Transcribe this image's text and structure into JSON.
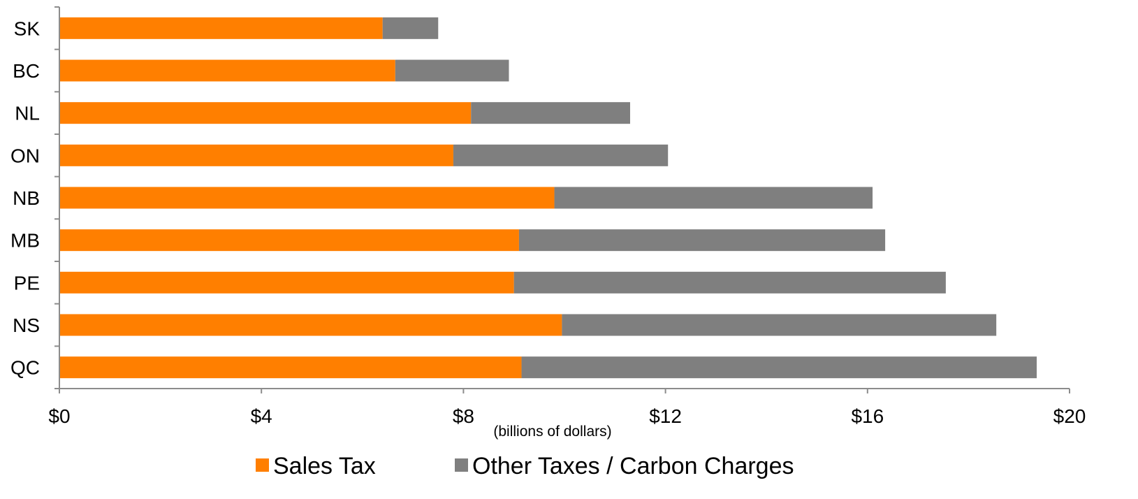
{
  "chart_data": {
    "type": "bar",
    "orientation": "horizontal",
    "stacked": true,
    "categories": [
      "SK",
      "BC",
      "NL",
      "ON",
      "NB",
      "MB",
      "PE",
      "NS",
      "QC"
    ],
    "series": [
      {
        "name": "Sales Tax",
        "color": "#ff7f00",
        "values": [
          6.4,
          6.65,
          8.15,
          7.8,
          9.8,
          9.1,
          9.0,
          9.95,
          9.15
        ]
      },
      {
        "name": "Other Taxes / Carbon Charges",
        "color": "#7f7f7f",
        "values": [
          1.1,
          2.25,
          3.15,
          4.25,
          6.3,
          7.25,
          8.55,
          8.6,
          10.2
        ]
      }
    ],
    "xlabel": "(billions of dollars)",
    "ylabel": "",
    "xlim": [
      0,
      20
    ],
    "x_ticks": [
      0,
      4,
      8,
      12,
      16,
      20
    ],
    "x_tick_labels": [
      "$0",
      "$4",
      "$8",
      "$12",
      "$16",
      "$20"
    ],
    "grid": false,
    "legend_position": "bottom"
  }
}
